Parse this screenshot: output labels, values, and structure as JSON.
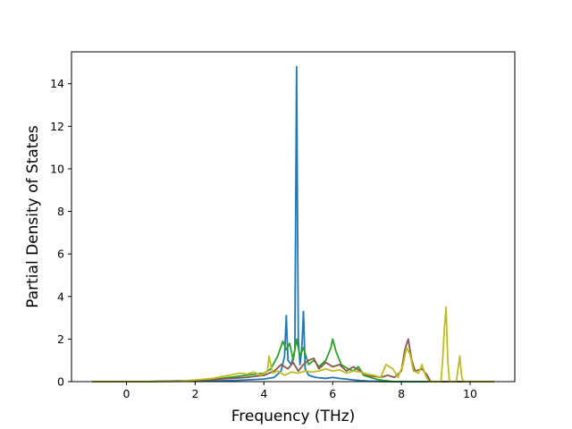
{
  "chart_data": {
    "type": "line",
    "title": "",
    "xlabel": "Frequency (THz)",
    "ylabel": "Partial Density of States",
    "xlim": [
      -1.6,
      11.3
    ],
    "ylim": [
      0,
      15.5
    ],
    "x_ticks": [
      0,
      2,
      4,
      6,
      8,
      10
    ],
    "y_ticks": [
      0,
      2,
      4,
      6,
      8,
      10,
      12,
      14
    ],
    "grid": false,
    "legend": "none",
    "series": [
      {
        "color": "#1f77b4",
        "points": [
          [
            -1.0,
            0
          ],
          [
            0.5,
            0
          ],
          [
            2.0,
            0.02
          ],
          [
            3.0,
            0.05
          ],
          [
            3.5,
            0.08
          ],
          [
            4.0,
            0.12
          ],
          [
            4.3,
            0.2
          ],
          [
            4.5,
            0.5
          ],
          [
            4.6,
            1.2
          ],
          [
            4.65,
            3.1
          ],
          [
            4.7,
            1.0
          ],
          [
            4.8,
            0.8
          ],
          [
            4.9,
            1.5
          ],
          [
            4.95,
            14.8
          ],
          [
            5.0,
            2.0
          ],
          [
            5.05,
            0.8
          ],
          [
            5.1,
            1.5
          ],
          [
            5.15,
            3.3
          ],
          [
            5.2,
            0.6
          ],
          [
            5.3,
            0.3
          ],
          [
            5.5,
            0.2
          ],
          [
            5.8,
            0.15
          ],
          [
            6.0,
            0.2
          ],
          [
            6.2,
            0.15
          ],
          [
            6.4,
            0.12
          ],
          [
            6.6,
            0.08
          ],
          [
            6.8,
            0.05
          ],
          [
            7.0,
            0.03
          ],
          [
            7.5,
            0
          ],
          [
            10.7,
            0
          ]
        ]
      },
      {
        "color": "#2ca02c",
        "points": [
          [
            -1.0,
            0
          ],
          [
            0.5,
            0
          ],
          [
            2.0,
            0.05
          ],
          [
            2.5,
            0.1
          ],
          [
            3.0,
            0.2
          ],
          [
            3.5,
            0.3
          ],
          [
            4.0,
            0.4
          ],
          [
            4.2,
            0.6
          ],
          [
            4.4,
            1.2
          ],
          [
            4.55,
            1.9
          ],
          [
            4.65,
            1.5
          ],
          [
            4.75,
            1.8
          ],
          [
            4.85,
            1.0
          ],
          [
            4.95,
            2.0
          ],
          [
            5.05,
            1.2
          ],
          [
            5.15,
            1.6
          ],
          [
            5.3,
            0.8
          ],
          [
            5.45,
            1.0
          ],
          [
            5.6,
            0.7
          ],
          [
            5.8,
            1.0
          ],
          [
            5.95,
            1.6
          ],
          [
            6.0,
            2.0
          ],
          [
            6.1,
            1.4
          ],
          [
            6.25,
            0.8
          ],
          [
            6.45,
            0.6
          ],
          [
            6.6,
            0.5
          ],
          [
            6.75,
            0.7
          ],
          [
            6.9,
            0.3
          ],
          [
            7.1,
            0.2
          ],
          [
            7.3,
            0.1
          ],
          [
            7.5,
            0.05
          ],
          [
            7.8,
            0
          ],
          [
            10.7,
            0
          ]
        ]
      },
      {
        "color": "#8c564b",
        "points": [
          [
            -1.0,
            0
          ],
          [
            0.5,
            0
          ],
          [
            2.0,
            0.05
          ],
          [
            2.5,
            0.1
          ],
          [
            3.0,
            0.15
          ],
          [
            3.5,
            0.2
          ],
          [
            4.0,
            0.3
          ],
          [
            4.3,
            0.5
          ],
          [
            4.5,
            0.8
          ],
          [
            4.7,
            0.6
          ],
          [
            4.85,
            0.9
          ],
          [
            5.0,
            0.5
          ],
          [
            5.15,
            0.8
          ],
          [
            5.3,
            1.0
          ],
          [
            5.45,
            1.1
          ],
          [
            5.6,
            0.6
          ],
          [
            5.8,
            0.9
          ],
          [
            6.0,
            0.7
          ],
          [
            6.2,
            0.8
          ],
          [
            6.4,
            0.5
          ],
          [
            6.6,
            0.7
          ],
          [
            6.8,
            0.5
          ],
          [
            7.0,
            0.3
          ],
          [
            7.2,
            0.25
          ],
          [
            7.4,
            0.2
          ],
          [
            7.6,
            0.3
          ],
          [
            7.8,
            0.2
          ],
          [
            8.0,
            0.5
          ],
          [
            8.1,
            1.5
          ],
          [
            8.2,
            2.0
          ],
          [
            8.3,
            1.0
          ],
          [
            8.4,
            0.5
          ],
          [
            8.6,
            0.6
          ],
          [
            8.75,
            0.3
          ],
          [
            8.85,
            0
          ],
          [
            10.7,
            0
          ]
        ]
      },
      {
        "color": "#bcbd22",
        "points": [
          [
            -1.0,
            0
          ],
          [
            0.5,
            0
          ],
          [
            1.5,
            0.02
          ],
          [
            2.0,
            0.08
          ],
          [
            2.5,
            0.15
          ],
          [
            3.0,
            0.3
          ],
          [
            3.3,
            0.4
          ],
          [
            3.5,
            0.35
          ],
          [
            3.7,
            0.45
          ],
          [
            3.9,
            0.3
          ],
          [
            4.1,
            0.5
          ],
          [
            4.15,
            1.2
          ],
          [
            4.25,
            0.4
          ],
          [
            4.4,
            0.5
          ],
          [
            4.6,
            0.3
          ],
          [
            4.8,
            0.45
          ],
          [
            5.0,
            0.4
          ],
          [
            5.2,
            0.5
          ],
          [
            5.4,
            0.45
          ],
          [
            5.6,
            0.5
          ],
          [
            5.8,
            0.6
          ],
          [
            6.0,
            0.5
          ],
          [
            6.2,
            0.55
          ],
          [
            6.4,
            0.4
          ],
          [
            6.6,
            0.5
          ],
          [
            6.8,
            0.45
          ],
          [
            7.0,
            0.35
          ],
          [
            7.2,
            0.3
          ],
          [
            7.4,
            0.2
          ],
          [
            7.55,
            0.8
          ],
          [
            7.75,
            0.6
          ],
          [
            7.9,
            0.2
          ],
          [
            8.05,
            0.8
          ],
          [
            8.15,
            1.6
          ],
          [
            8.25,
            1.3
          ],
          [
            8.35,
            0.5
          ],
          [
            8.5,
            0.4
          ],
          [
            8.6,
            0.8
          ],
          [
            8.7,
            0.3
          ],
          [
            8.8,
            0
          ],
          [
            9.15,
            0
          ],
          [
            9.2,
            1.0
          ],
          [
            9.25,
            2.5
          ],
          [
            9.3,
            3.5
          ],
          [
            9.35,
            1.0
          ],
          [
            9.4,
            0
          ],
          [
            9.6,
            0
          ],
          [
            9.65,
            0.6
          ],
          [
            9.7,
            1.2
          ],
          [
            9.75,
            0.3
          ],
          [
            9.8,
            0
          ],
          [
            10.7,
            0
          ]
        ]
      }
    ]
  }
}
